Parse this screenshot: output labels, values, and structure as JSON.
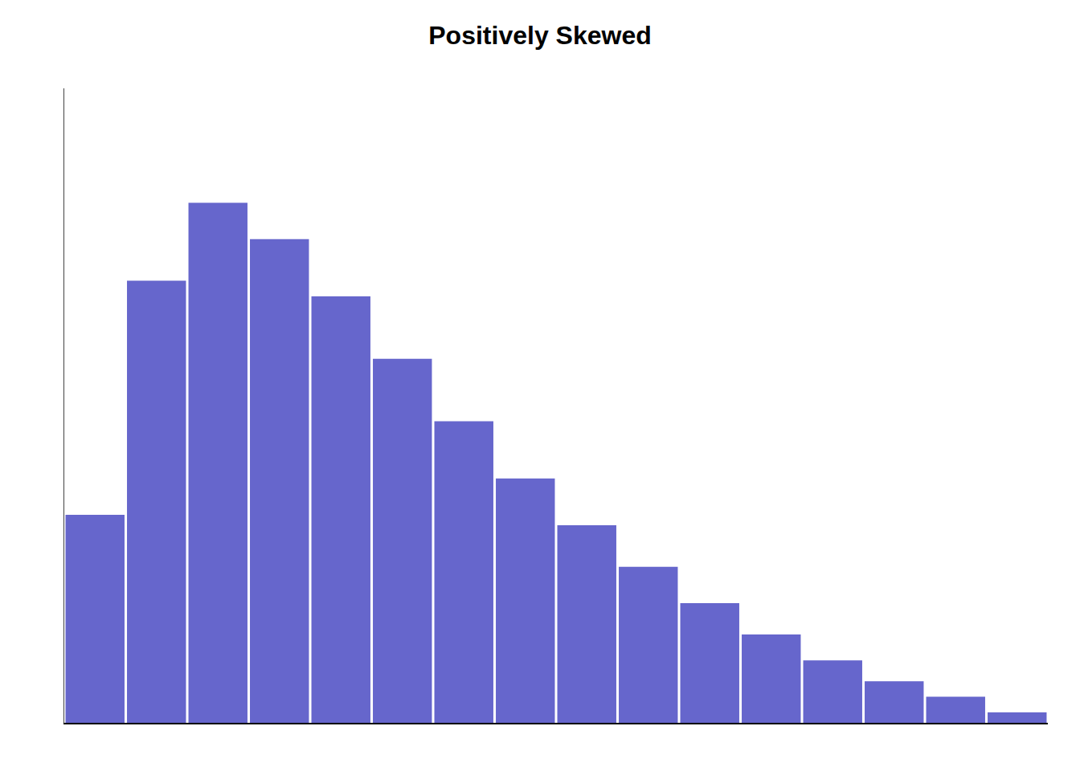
{
  "chart_data": {
    "type": "bar",
    "title": "Positively Skewed",
    "categories": [
      null,
      null,
      null,
      null,
      null,
      null,
      null,
      null,
      null,
      null,
      null,
      null,
      null,
      null,
      null,
      null
    ],
    "values": [
      40,
      85,
      100,
      93,
      82,
      70,
      58,
      47,
      38,
      30,
      23,
      17,
      12,
      8,
      5,
      2
    ],
    "color": "#6666CC",
    "ylim": [
      0,
      122
    ],
    "grid": false,
    "tick_labels": false
  }
}
